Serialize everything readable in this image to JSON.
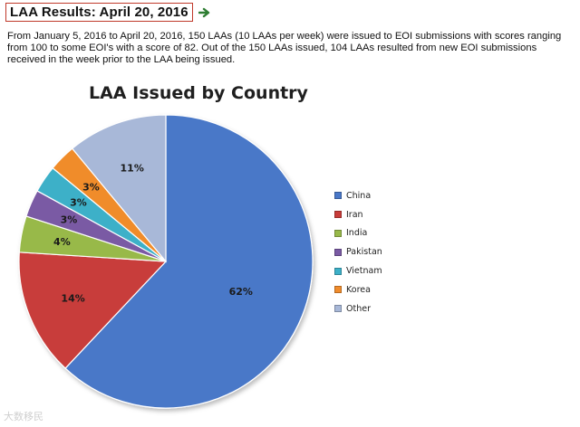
{
  "header": {
    "title": "LAA Results: April 20, 2016",
    "arrow_icon": "right-arrow-icon",
    "title_border_color": "#c0392b",
    "arrow_color": "#2e7d32"
  },
  "intro": {
    "text": "From January 5, 2016 to April 20, 2016, 150 LAAs (10 LAAs per week) were issued to EOI submissions with scores ranging from 100 to some EOI's with a score of 82.  Out of the 150 LAAs issued, 104 LAAs resulted from new EOI submissions received in the week prior to the LAA being issued."
  },
  "chart_data": {
    "type": "pie",
    "title": "LAA Issued by Country",
    "categories": [
      "China",
      "Iran",
      "India",
      "Pakistan",
      "Vietnam",
      "Korea",
      "Other"
    ],
    "values": [
      62,
      14,
      4,
      3,
      3,
      3,
      11
    ],
    "labels": [
      "62%",
      "14%",
      "4%",
      "3%",
      "3%",
      "3%",
      "11%"
    ],
    "colors": [
      "#4a78c8",
      "#c83c3a",
      "#98b94a",
      "#7a5aa4",
      "#3cb0c8",
      "#f08c2c",
      "#a8b8d8"
    ],
    "legend_position": "right"
  },
  "watermark": {
    "text": "大数移民"
  }
}
